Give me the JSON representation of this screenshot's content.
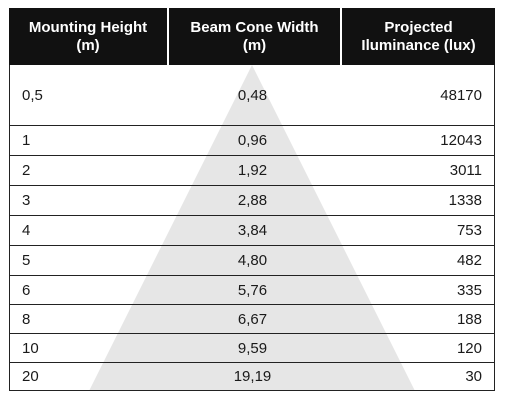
{
  "header": {
    "col1_line1": "Mounting Height",
    "col1_line2": "(m)",
    "col2_line1": "Beam Cone Width",
    "col2_line2": "(m)",
    "col3_line1": "Projected",
    "col3_line2": "Iluminance (lux)"
  },
  "rows": [
    {
      "height": "0,5",
      "width": "0,48",
      "lux": "48170"
    },
    {
      "height": "1",
      "width": "0,96",
      "lux": "12043"
    },
    {
      "height": "2",
      "width": "1,92",
      "lux": "3011"
    },
    {
      "height": "3",
      "width": "2,88",
      "lux": "1338"
    },
    {
      "height": "4",
      "width": "3,84",
      "lux": "753"
    },
    {
      "height": "5",
      "width": "4,80",
      "lux": "482"
    },
    {
      "height": "6",
      "width": "5,76",
      "lux": "335"
    },
    {
      "height": "8",
      "width": "6,67",
      "lux": "188"
    },
    {
      "height": "10",
      "width": "9,59",
      "lux": "120"
    },
    {
      "height": "20",
      "width": "19,19",
      "lux": "30"
    }
  ],
  "colors": {
    "header_bg": "#111111",
    "cone_fill": "#e6e6e6",
    "border": "#222222"
  }
}
